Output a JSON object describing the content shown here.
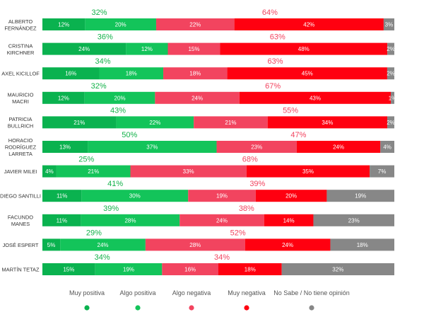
{
  "chart_data": {
    "type": "bar",
    "orientation": "horizontal",
    "stacked": true,
    "normalized_percent": true,
    "legend_position": "bottom",
    "grid": false,
    "categories_lines": [
      [
        "ALBERTO",
        "FERNÁNDEZ"
      ],
      [
        "CRISTINA",
        "KIRCHNER"
      ],
      [
        "AXEL KICILLOF"
      ],
      [
        "MAURICIO",
        "MACRI"
      ],
      [
        "PATRICIA",
        "BULLRICH"
      ],
      [
        "HORACIO",
        "RODRÍGUEZ",
        "LARRETA"
      ],
      [
        "JAVIER MILEI"
      ],
      [
        "DIEGO SANTILLI"
      ],
      [
        "FACUNDO",
        "MANES"
      ],
      [
        "JOSÉ ESPERT"
      ],
      [
        "MARTÍN TETAZ"
      ]
    ],
    "series": [
      {
        "name": "Muy positiva",
        "color": "#0ab24f",
        "values": [
          12,
          24,
          16,
          12,
          21,
          13,
          4,
          11,
          11,
          5,
          15
        ]
      },
      {
        "name": "Algo positiva",
        "color": "#13c45a",
        "values": [
          20,
          12,
          18,
          20,
          22,
          37,
          21,
          30,
          28,
          24,
          19
        ]
      },
      {
        "name": "Algo negativa",
        "color": "#f2445f",
        "values": [
          22,
          15,
          18,
          24,
          21,
          23,
          33,
          19,
          24,
          28,
          16
        ]
      },
      {
        "name": "Muy negativa",
        "color": "#ff0010",
        "values": [
          42,
          48,
          45,
          43,
          34,
          24,
          35,
          20,
          14,
          24,
          18
        ]
      },
      {
        "name": "No Sabe / No tiene opinión",
        "color": "#878787",
        "values": [
          3,
          2,
          2,
          1,
          2,
          4,
          7,
          19,
          23,
          18,
          32
        ]
      }
    ],
    "positive_totals": [
      32,
      36,
      34,
      32,
      43,
      50,
      25,
      41,
      39,
      29,
      34
    ],
    "negative_totals": [
      64,
      63,
      63,
      67,
      55,
      47,
      68,
      39,
      38,
      52,
      34
    ],
    "positive_total_color": "#13b24a",
    "negative_total_color": "#f2445f",
    "value_label_suffix": "%"
  }
}
